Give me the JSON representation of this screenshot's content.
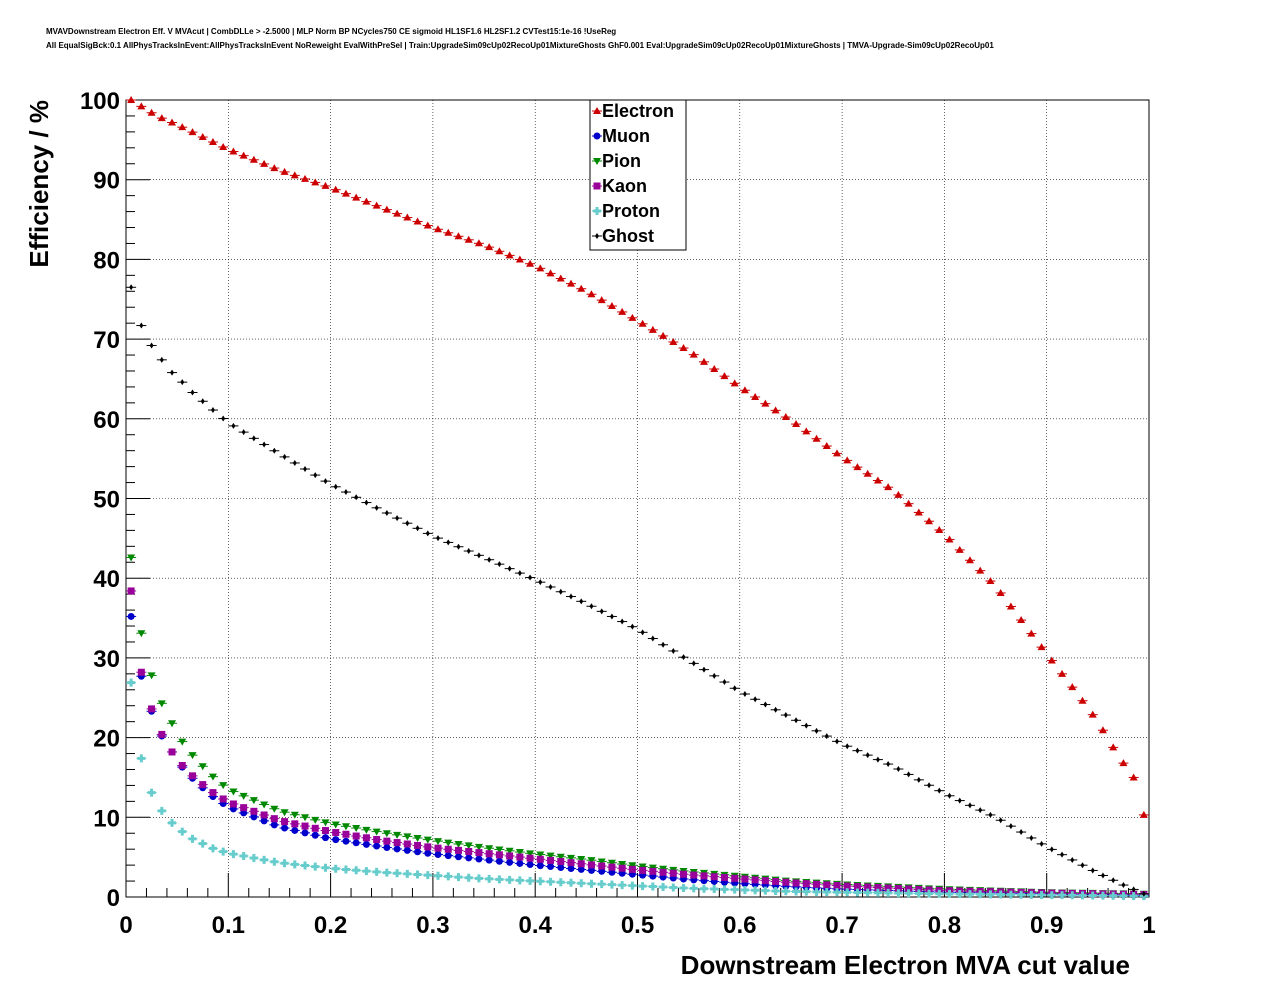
{
  "header": {
    "title_line1": "MVAVDownstream Electron Eff. V MVAcut | CombDLLe > -2.5000 | MLP Norm BP NCycles750 CE sigmoid HL1SF1.6 HL2SF1.2 CVTest15:1e-16 !UseReg",
    "title_line2": "All EqualSigBck:0.1 AllPhysTracksInEvent:AllPhysTracksInEvent NoReweight EvalWithPreSel | Train:UpgradeSim09cUp02RecoUp01MixtureGhosts GhF0.001 Eval:UpgradeSim09cUp02RecoUp01MixtureGhosts | TMVA-Upgrade-Sim09cUp02RecoUp01"
  },
  "chart_data": {
    "type": "scatter",
    "title": "",
    "xlabel": "Downstream Electron MVA cut value",
    "ylabel": "Efficiency / %",
    "xlim": [
      0,
      1
    ],
    "ylim": [
      0,
      100
    ],
    "x_ticks": [
      "0",
      "0.1",
      "0.2",
      "0.3",
      "0.4",
      "0.5",
      "0.6",
      "0.7",
      "0.8",
      "0.9",
      "1"
    ],
    "y_ticks": [
      "0",
      "10",
      "20",
      "30",
      "40",
      "50",
      "60",
      "70",
      "80",
      "90",
      "100"
    ],
    "grid": true,
    "legend_position": "top-center",
    "x_sampling": {
      "start": 0.005,
      "step": 0.01,
      "count": 100
    },
    "series": [
      {
        "name": "Electron",
        "marker": "triangle-up",
        "color": "#cc0000",
        "keypoints": [
          [
            0.005,
            100
          ],
          [
            0.015,
            99.2
          ],
          [
            0.03,
            98
          ],
          [
            0.05,
            96.9
          ],
          [
            0.1,
            93.8
          ],
          [
            0.15,
            91.2
          ],
          [
            0.2,
            89
          ],
          [
            0.25,
            86.5
          ],
          [
            0.3,
            84
          ],
          [
            0.35,
            81.8
          ],
          [
            0.4,
            79.2
          ],
          [
            0.45,
            76
          ],
          [
            0.5,
            72.3
          ],
          [
            0.55,
            68.5
          ],
          [
            0.6,
            64
          ],
          [
            0.65,
            59.8
          ],
          [
            0.7,
            55.2
          ],
          [
            0.75,
            51
          ],
          [
            0.8,
            45.5
          ],
          [
            0.85,
            39
          ],
          [
            0.9,
            30.5
          ],
          [
            0.93,
            25.5
          ],
          [
            0.95,
            22
          ],
          [
            0.97,
            17.7
          ],
          [
            0.985,
            15
          ],
          [
            0.995,
            10.3
          ]
        ]
      },
      {
        "name": "Muon",
        "marker": "circle",
        "color": "#0000cc",
        "keypoints": [
          [
            0.005,
            35.2
          ],
          [
            0.015,
            27.7
          ],
          [
            0.025,
            23.3
          ],
          [
            0.035,
            20.2
          ],
          [
            0.045,
            18.2
          ],
          [
            0.055,
            16.3
          ],
          [
            0.065,
            14.9
          ],
          [
            0.075,
            13.7
          ],
          [
            0.085,
            12.6
          ],
          [
            0.1,
            11.3
          ],
          [
            0.15,
            8.8
          ],
          [
            0.2,
            7.3
          ],
          [
            0.25,
            6.3
          ],
          [
            0.3,
            5.4
          ],
          [
            0.35,
            4.7
          ],
          [
            0.4,
            4.0
          ],
          [
            0.45,
            3.4
          ],
          [
            0.5,
            2.8
          ],
          [
            0.55,
            2.2
          ],
          [
            0.6,
            1.7
          ],
          [
            0.65,
            1.3
          ],
          [
            0.7,
            1.0
          ],
          [
            0.75,
            0.8
          ],
          [
            0.8,
            0.6
          ],
          [
            0.9,
            0.4
          ],
          [
            1.0,
            0.2
          ]
        ]
      },
      {
        "name": "Pion",
        "marker": "triangle-down",
        "color": "#008800",
        "keypoints": [
          [
            0.005,
            42.6
          ],
          [
            0.015,
            33.1
          ],
          [
            0.025,
            27.8
          ],
          [
            0.035,
            24.3
          ],
          [
            0.045,
            21.8
          ],
          [
            0.055,
            19.5
          ],
          [
            0.065,
            17.8
          ],
          [
            0.075,
            16.4
          ],
          [
            0.085,
            15.1
          ],
          [
            0.1,
            13.5
          ],
          [
            0.15,
            10.8
          ],
          [
            0.2,
            9.2
          ],
          [
            0.25,
            8.1
          ],
          [
            0.3,
            7.1
          ],
          [
            0.35,
            6.2
          ],
          [
            0.4,
            5.4
          ],
          [
            0.45,
            4.7
          ],
          [
            0.5,
            3.9
          ],
          [
            0.55,
            3.2
          ],
          [
            0.6,
            2.6
          ],
          [
            0.65,
            2.0
          ],
          [
            0.7,
            1.6
          ],
          [
            0.75,
            1.3
          ],
          [
            0.8,
            1.0
          ],
          [
            0.9,
            0.6
          ],
          [
            1.0,
            0.4
          ]
        ]
      },
      {
        "name": "Kaon",
        "marker": "square",
        "color": "#990099",
        "keypoints": [
          [
            0.005,
            38.4
          ],
          [
            0.015,
            28.2
          ],
          [
            0.025,
            23.6
          ],
          [
            0.035,
            20.4
          ],
          [
            0.045,
            18.2
          ],
          [
            0.055,
            16.5
          ],
          [
            0.065,
            15.2
          ],
          [
            0.075,
            14.1
          ],
          [
            0.085,
            13.1
          ],
          [
            0.1,
            11.9
          ],
          [
            0.15,
            9.6
          ],
          [
            0.2,
            8.2
          ],
          [
            0.25,
            7.1
          ],
          [
            0.3,
            6.2
          ],
          [
            0.35,
            5.5
          ],
          [
            0.4,
            4.8
          ],
          [
            0.45,
            4.1
          ],
          [
            0.5,
            3.4
          ],
          [
            0.55,
            2.8
          ],
          [
            0.6,
            2.3
          ],
          [
            0.65,
            1.8
          ],
          [
            0.7,
            1.4
          ],
          [
            0.75,
            1.1
          ],
          [
            0.8,
            0.8
          ],
          [
            0.9,
            0.5
          ],
          [
            1.0,
            0.3
          ]
        ]
      },
      {
        "name": "Proton",
        "marker": "cross",
        "color": "#66cccc",
        "keypoints": [
          [
            0.005,
            26.9
          ],
          [
            0.015,
            17.4
          ],
          [
            0.025,
            13.1
          ],
          [
            0.035,
            10.8
          ],
          [
            0.045,
            9.3
          ],
          [
            0.055,
            8.2
          ],
          [
            0.065,
            7.3
          ],
          [
            0.075,
            6.7
          ],
          [
            0.085,
            6.1
          ],
          [
            0.1,
            5.5
          ],
          [
            0.15,
            4.3
          ],
          [
            0.2,
            3.6
          ],
          [
            0.25,
            3.1
          ],
          [
            0.3,
            2.7
          ],
          [
            0.35,
            2.3
          ],
          [
            0.4,
            2.0
          ],
          [
            0.45,
            1.7
          ],
          [
            0.5,
            1.4
          ],
          [
            0.55,
            1.1
          ],
          [
            0.6,
            0.9
          ],
          [
            0.65,
            0.7
          ],
          [
            0.7,
            0.6
          ],
          [
            0.8,
            0.4
          ],
          [
            0.9,
            0.25
          ],
          [
            1.0,
            0.1
          ]
        ]
      },
      {
        "name": "Ghost",
        "marker": "diamond",
        "color": "#000000",
        "keypoints": [
          [
            0.005,
            76.5
          ],
          [
            0.015,
            71.7
          ],
          [
            0.025,
            69.2
          ],
          [
            0.035,
            67.4
          ],
          [
            0.045,
            65.8
          ],
          [
            0.055,
            64.6
          ],
          [
            0.065,
            63.3
          ],
          [
            0.075,
            62.2
          ],
          [
            0.085,
            61.1
          ],
          [
            0.1,
            59.5
          ],
          [
            0.15,
            55.6
          ],
          [
            0.2,
            51.8
          ],
          [
            0.25,
            48.5
          ],
          [
            0.3,
            45.3
          ],
          [
            0.35,
            42.6
          ],
          [
            0.4,
            39.8
          ],
          [
            0.45,
            36.8
          ],
          [
            0.5,
            33.6
          ],
          [
            0.55,
            29.7
          ],
          [
            0.6,
            25.8
          ],
          [
            0.65,
            22.5
          ],
          [
            0.7,
            19.2
          ],
          [
            0.75,
            16.4
          ],
          [
            0.8,
            13.0
          ],
          [
            0.85,
            10.0
          ],
          [
            0.9,
            6.3
          ],
          [
            0.95,
            3.0
          ],
          [
            0.975,
            1.5
          ],
          [
            0.995,
            0.4
          ]
        ]
      }
    ]
  }
}
